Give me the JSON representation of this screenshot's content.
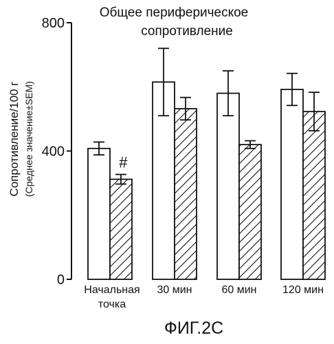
{
  "chart_data": {
    "type": "bar",
    "title_lines": [
      "Общее периферическое",
      "сопротивление"
    ],
    "ylabel_line1": "Сопротивление/100 г",
    "ylabel_line2": "(Среднее значение±SEM)",
    "xlabel": "",
    "ylim": [
      0,
      800
    ],
    "yticks": [
      "0",
      "400",
      "800"
    ],
    "categories": [
      {
        "lines": [
          "Начальная",
          "точка"
        ]
      },
      {
        "lines": [
          "30 мин"
        ]
      },
      {
        "lines": [
          "60 мин"
        ]
      },
      {
        "lines": [
          "120 мин"
        ]
      }
    ],
    "series": [
      {
        "pattern": "open",
        "values": [
          408,
          615,
          580,
          592
        ],
        "errors": [
          20,
          105,
          70,
          50
        ]
      },
      {
        "pattern": "hatched",
        "values": [
          312,
          532,
          420,
          523
        ],
        "errors": [
          15,
          35,
          12,
          60
        ]
      }
    ],
    "annotations": [
      {
        "text": "#",
        "category": 0,
        "series": 1
      }
    ],
    "figure_label": "ФИГ.2С"
  }
}
